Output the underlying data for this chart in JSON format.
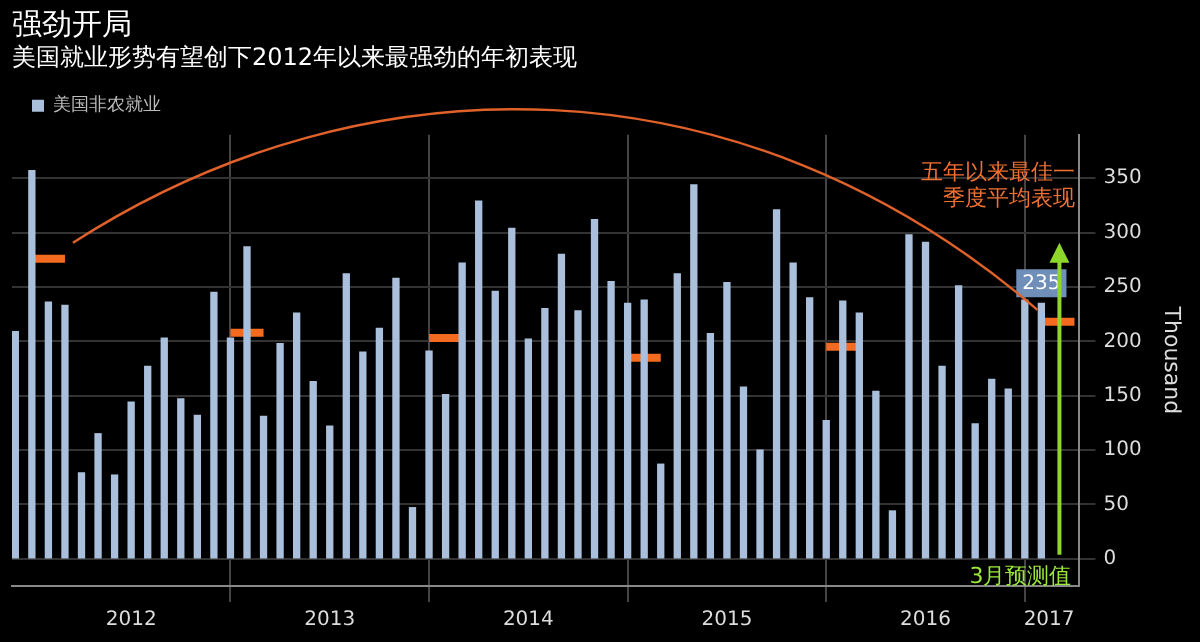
{
  "chart_data": {
    "type": "bar",
    "title": "强劲开局",
    "subtitle": "美国就业形势有望创下2012年以来最强劲的年初表现",
    "ylabel": "Thousand",
    "x": [
      "2011-12",
      "2012-01",
      "2012-02",
      "2012-03",
      "2012-04",
      "2012-05",
      "2012-06",
      "2012-07",
      "2012-08",
      "2012-09",
      "2012-10",
      "2012-11",
      "2012-12",
      "2013-01",
      "2013-02",
      "2013-03",
      "2013-04",
      "2013-05",
      "2013-06",
      "2013-07",
      "2013-08",
      "2013-09",
      "2013-10",
      "2013-11",
      "2013-12",
      "2014-01",
      "2014-02",
      "2014-03",
      "2014-04",
      "2014-05",
      "2014-06",
      "2014-07",
      "2014-08",
      "2014-09",
      "2014-10",
      "2014-11",
      "2014-12",
      "2015-01",
      "2015-02",
      "2015-03",
      "2015-04",
      "2015-05",
      "2015-06",
      "2015-07",
      "2015-08",
      "2015-09",
      "2015-10",
      "2015-11",
      "2015-12",
      "2016-01",
      "2016-02",
      "2016-03",
      "2016-04",
      "2016-05",
      "2016-06",
      "2016-07",
      "2016-08",
      "2016-09",
      "2016-10",
      "2016-11",
      "2016-12",
      "2017-01",
      "2017-02"
    ],
    "series": [
      {
        "name": "美国非农就业",
        "color": "#aabfdc",
        "values": [
          209,
          357,
          236,
          233,
          79,
          115,
          77,
          144,
          177,
          203,
          147,
          132,
          245,
          203,
          287,
          131,
          198,
          226,
          163,
          122,
          262,
          190,
          212,
          258,
          47,
          191,
          151,
          272,
          329,
          246,
          304,
          202,
          230,
          280,
          228,
          312,
          255,
          235,
          238,
          87,
          262,
          344,
          207,
          254,
          158,
          100,
          321,
          272,
          240,
          127,
          237,
          226,
          154,
          44,
          298,
          291,
          177,
          251,
          124,
          165,
          156,
          238,
          235
        ],
        "value_labels": [
          null,
          null,
          null,
          null,
          null,
          null,
          null,
          null,
          null,
          null,
          null,
          null,
          null,
          null,
          null,
          null,
          null,
          null,
          null,
          null,
          null,
          null,
          null,
          null,
          null,
          null,
          null,
          null,
          null,
          null,
          null,
          null,
          null,
          null,
          null,
          null,
          null,
          null,
          null,
          null,
          null,
          null,
          null,
          null,
          null,
          null,
          null,
          null,
          null,
          null,
          null,
          null,
          null,
          null,
          null,
          null,
          null,
          null,
          null,
          null,
          null,
          null,
          "235"
        ]
      },
      {
        "type": "line",
        "color": "#f46b20",
        "x": [
          "2012-01",
          "2012-03"
        ],
        "values": [
          276,
          276
        ]
      },
      {
        "type": "line",
        "color": "#f46b20",
        "x": [
          "2013-01",
          "2013-03"
        ],
        "values": [
          208,
          208
        ]
      },
      {
        "type": "line",
        "color": "#f46b20",
        "x": [
          "2014-01",
          "2014-03"
        ],
        "values": [
          203,
          203
        ]
      },
      {
        "type": "line",
        "color": "#f46b20",
        "x": [
          "2015-01",
          "2015-03"
        ],
        "values": [
          185,
          185
        ]
      },
      {
        "type": "line",
        "color": "#f46b20",
        "x": [
          "2016-01",
          "2016-03"
        ],
        "values": [
          195,
          195
        ]
      },
      {
        "type": "line",
        "color": "#f46b20",
        "x": [
          "2017-02",
          "2017-04"
        ],
        "values": [
          218,
          218
        ]
      }
    ],
    "xlim": [
      "2011-11-25",
      "2017-04-10"
    ],
    "xticks": [
      {
        "value": "2012-07-01",
        "label": "2012"
      },
      {
        "value": "2013-01-01",
        "label": null
      },
      {
        "value": "2013-07-01",
        "label": "2013"
      },
      {
        "value": "2014-01-01",
        "label": null
      },
      {
        "value": "2014-07-01",
        "label": "2014"
      },
      {
        "value": "2015-01-01",
        "label": null
      },
      {
        "value": "2015-07-01",
        "label": "2015"
      },
      {
        "value": "2016-01-01",
        "label": null
      },
      {
        "value": "2016-07-01",
        "label": "2016"
      },
      {
        "value": "2017-01-01",
        "label": null
      },
      {
        "value": "2017-02-15",
        "label": "2017"
      }
    ],
    "ylim": [
      -25,
      390
    ],
    "yticks": [
      0,
      50,
      100,
      150,
      200,
      250,
      300,
      350
    ],
    "grid": true,
    "legend": "top left",
    "annotations": [
      "五年以来最佳一季度平均表现",
      "3月预测值"
    ]
  }
}
